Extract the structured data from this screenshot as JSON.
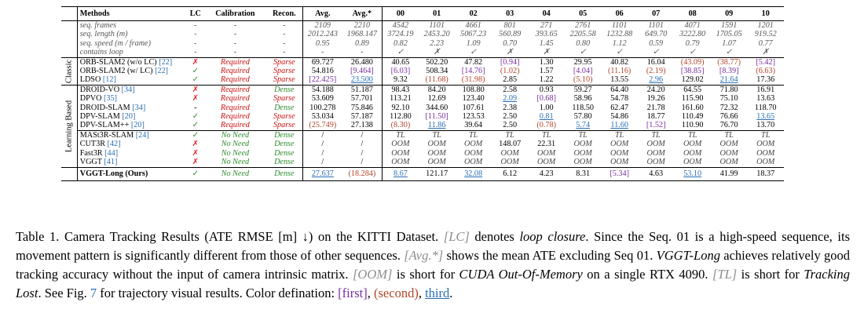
{
  "table": {
    "headers": [
      "Methods",
      "LC",
      "Calibration",
      "Recon.",
      "Avg.",
      "Avg.*",
      "00",
      "01",
      "02",
      "03",
      "04",
      "05",
      "06",
      "07",
      "08",
      "09",
      "10"
    ],
    "info_rows": [
      {
        "label": "seq. frames",
        "vals": [
          "-",
          "-",
          "-",
          "2109",
          "2210",
          "4542",
          "1101",
          "4661",
          "801",
          "271",
          "2761",
          "1101",
          "1101",
          "4071",
          "1591",
          "1201"
        ]
      },
      {
        "label": "seq. length (m)",
        "vals": [
          "-",
          "-",
          "-",
          "2012.243",
          "1968.147",
          "3724.19",
          "2453.20",
          "5067.23",
          "560.89",
          "393.65",
          "2205.58",
          "1232.88",
          "649.70",
          "3222.80",
          "1705.05",
          "919.52"
        ]
      },
      {
        "label": "seq. speed (m / frame)",
        "vals": [
          "-",
          "-",
          "-",
          "0.95",
          "0.89",
          "0.82",
          "2.23",
          "1.09",
          "0.70",
          "1.45",
          "0.80",
          "1.12",
          "0.59",
          "0.79",
          "1.07",
          "0.77"
        ]
      },
      {
        "label": "contains loop",
        "vals": [
          "-",
          "-",
          "-",
          "-",
          "-",
          "✓",
          "✗",
          "✓",
          "✗",
          "✗",
          "✓",
          "✓",
          "✓",
          "✓",
          "✓",
          "✗"
        ]
      }
    ],
    "groups": [
      {
        "name": "Classic",
        "rows": [
          {
            "method": "ORB-SLAM2 (w/o LC)",
            "cite": "[22]",
            "lc": "✗",
            "cal": "Required",
            "recon": "Sparse",
            "vals": [
              "69.727",
              "26.480",
              "40.65",
              "502.20",
              "47.82",
              "[0.94]",
              "1.30",
              "29.95",
              "40.82",
              "16.04",
              "(43.09)",
              "(38.77)",
              "[5.42]"
            ]
          },
          {
            "method": "ORB-SLAM2 (w/ LC)",
            "cite": "[22]",
            "lc": "✓",
            "cal": "Required",
            "recon": "Sparse",
            "vals": [
              "54.816",
              "[9.464]",
              "[6.03]",
              "508.34",
              "[14.76]",
              "(1.02)",
              "1.57",
              "[4.04]",
              "(11.16)",
              "(2.19)",
              "[38.85]",
              "[8.39]",
              "(6.63)"
            ]
          },
          {
            "method": "LDSO",
            "cite": "[12]",
            "lc": "✓",
            "cal": "Required",
            "recon": "Sparse",
            "vals": [
              "[22.425]",
              "23.500",
              "9.32",
              "(11.68)",
              "(31.98)",
              "2.85",
              "1.22",
              "(5.10)",
              "13.55",
              "2.96",
              "129.02",
              "21.64",
              "17.36"
            ]
          }
        ]
      },
      {
        "name": "Learning Based",
        "rows": [
          {
            "method": "DROID-VO",
            "cite": "[34]",
            "lc": "✗",
            "cal": "Required",
            "recon": "Dense",
            "vals": [
              "54.188",
              "51.187",
              "98.43",
              "84.20",
              "108.80",
              "2.58",
              "0.93",
              "59.27",
              "64.40",
              "24.20",
              "64.55",
              "71.80",
              "16.91"
            ]
          },
          {
            "method": "DPVO",
            "cite": "[35]",
            "lc": "✗",
            "cal": "Required",
            "recon": "Sparse",
            "vals": [
              "53.609",
              "57.701",
              "113.21",
              "12.69",
              "123.40",
              "2.09",
              "[0.68]",
              "58.96",
              "54.78",
              "19.26",
              "115.90",
              "75.10",
              "13.63"
            ]
          },
          {
            "method": "DROID-SLAM",
            "cite": "[34]",
            "lc": "-",
            "cal": "Required",
            "recon": "Dense",
            "vals": [
              "100.278",
              "75.846",
              "92.10",
              "344.60",
              "107.61",
              "2.38",
              "1.00",
              "118.50",
              "62.47",
              "21.78",
              "161.60",
              "72.32",
              "118.70"
            ]
          },
          {
            "method": "DPV-SLAM",
            "cite": "[20]",
            "lc": "✓",
            "cal": "Required",
            "recon": "Sparse",
            "vals": [
              "53.034",
              "57.187",
              "112.80",
              "[11.50]",
              "123.53",
              "2.50",
              "0.81",
              "57.80",
              "54.86",
              "18.77",
              "110.49",
              "76.66",
              "13.65"
            ]
          },
          {
            "method": "DPV-SLAM++",
            "cite": "[20]",
            "lc": "✓",
            "cal": "Required",
            "recon": "Sparse",
            "vals": [
              "(25.749)",
              "27.138",
              "(8.30)",
              "11.86",
              "39.64",
              "2.50",
              "(0.78)",
              "5.74",
              "11.60",
              "[1.52]",
              "110.90",
              "76.70",
              "13.70"
            ]
          },
          {
            "method": "MASt3R-SLAM",
            "cite": "[24]",
            "lc": "✓",
            "cal": "No Need",
            "recon": "Dense",
            "vals": [
              "/",
              "/",
              "TL",
              "TL",
              "TL",
              "TL",
              "TL",
              "TL",
              "TL",
              "TL",
              "TL",
              "TL",
              "TL"
            ]
          },
          {
            "method": "CUT3R",
            "cite": "[42]",
            "lc": "✗",
            "cal": "No Need",
            "recon": "Dense",
            "vals": [
              "/",
              "/",
              "OOM",
              "OOM",
              "OOM",
              "148.07",
              "22.31",
              "OOM",
              "OOM",
              "OOM",
              "OOM",
              "OOM",
              "OOM"
            ]
          },
          {
            "method": "Fast3R",
            "cite": "[44]",
            "lc": "✗",
            "cal": "No Need",
            "recon": "Dense",
            "vals": [
              "/",
              "/",
              "OOM",
              "OOM",
              "OOM",
              "OOM",
              "OOM",
              "OOM",
              "OOM",
              "OOM",
              "OOM",
              "OOM",
              "OOM"
            ]
          },
          {
            "method": "VGGT",
            "cite": "[41]",
            "lc": "✗",
            "cal": "No Need",
            "recon": "Dense",
            "vals": [
              "/",
              "/",
              "OOM",
              "OOM",
              "OOM",
              "OOM",
              "OOM",
              "OOM",
              "OOM",
              "OOM",
              "OOM",
              "OOM",
              "OOM"
            ]
          }
        ]
      }
    ],
    "ours": {
      "method": "VGGT-Long (Ours)",
      "lc": "✓",
      "cal": "No Need",
      "recon": "Dense",
      "vals": [
        "27.637",
        "(18.284)",
        "8.67",
        "121.17",
        "32.08",
        "6.12",
        "4.23",
        "8.31",
        "[5.34]",
        "4.63",
        "53.10",
        "41.99",
        "18.37"
      ]
    },
    "style_map": {
      "ORB-SLAM2 (w/o LC)": {
        "5": "first",
        "10": "second",
        "11": "second",
        "12": "first"
      },
      "ORB-SLAM2 (w/ LC)": {
        "1": "first",
        "2": "first",
        "4": "first",
        "5": "second",
        "7": "first",
        "8": "second",
        "9": "second",
        "10": "first",
        "11": "first",
        "12": "second"
      },
      "LDSO": {
        "0": "first",
        "1": "third",
        "3": "second",
        "4": "second",
        "7": "second",
        "9": "third",
        "11": "third"
      },
      "DPVO": {
        "5": "third",
        "6": "first"
      },
      "DPV-SLAM": {
        "3": "first",
        "6": "third",
        "12": "third"
      },
      "DPV-SLAM++": {
        "0": "second",
        "2": "second",
        "3": "third",
        "6": "second",
        "7": "third",
        "8": "third",
        "9": "first"
      },
      "VGGT-Long (Ours)": {
        "0": "third",
        "1": "second",
        "2": "third",
        "4": "third",
        "8": "first",
        "10": "third"
      }
    }
  },
  "caption": {
    "t1": "Table 1. Camera Tracking Results (ATE RMSE [m] ↓) on the KITTI Dataset. ",
    "lc": "[LC]",
    "t2": " denotes ",
    "lc_def": "loop closure",
    "t3": ". Since the Seq. 01 is a high-speed sequence, its movement pattern is significantly different from those of other sequences. ",
    "avg": "[Avg.*]",
    "t4": " shows the mean ATE excluding Seq 01. ",
    "vggt": "VGGT-Long",
    "t5": " achieves relatively good tracking accuracy without the input of camera intrinsic matrix. ",
    "oom": "[OOM]",
    "t6": " is short for ",
    "oom_def": "CUDA Out-Of-Memory",
    "t7": " on a single RTX 4090. ",
    "tl": "[TL]",
    "t8": " is short for ",
    "tl_def": "Tracking Lost",
    "t9": ". See Fig. ",
    "fig": "7",
    "t10": " for trajectory visual results. Color defination: ",
    "first": "[first]",
    "t11": ", ",
    "second": "(second)",
    "t12": ",",
    "third": "third",
    "t13": "."
  }
}
